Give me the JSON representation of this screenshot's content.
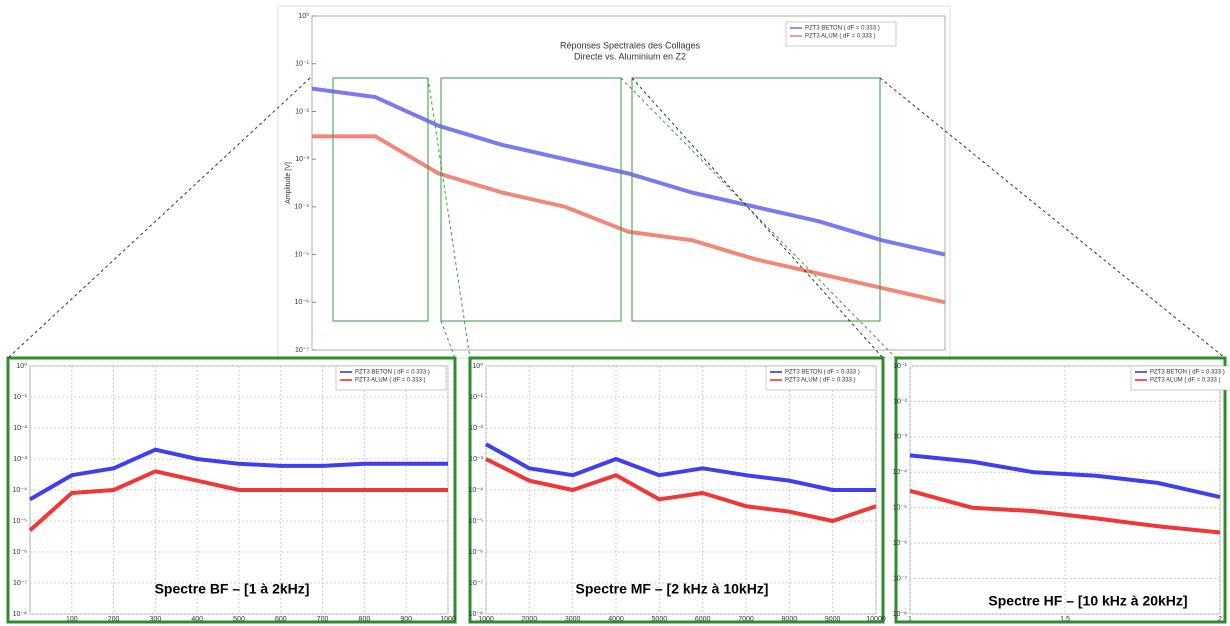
{
  "chart_data": [
    {
      "type": "line",
      "title": "Réponses Spectrales  des Collages",
      "subtitle": "Directe vs. Aluminium en Z2",
      "y_label": "Amplitude [V]",
      "log_y": true,
      "grid": false,
      "x": [
        0,
        2000,
        4000,
        6000,
        8000,
        10000,
        12000,
        14000,
        16000,
        18000,
        20000
      ],
      "xlim": [
        0,
        20000
      ],
      "ylim": [
        1e-07,
        1
      ],
      "yticks": [
        {
          "value": 1,
          "label": "10⁰"
        },
        {
          "value": 0.1,
          "label": "10⁻¹"
        },
        {
          "value": 0.01,
          "label": "10⁻²"
        },
        {
          "value": 0.001,
          "label": "10⁻³"
        },
        {
          "value": 0.0001,
          "label": "10⁻⁴"
        },
        {
          "value": 1e-05,
          "label": "10⁻⁵"
        },
        {
          "value": 1e-06,
          "label": "10⁻⁶"
        },
        {
          "value": 1e-07,
          "label": "10⁻⁷"
        }
      ],
      "series": [
        {
          "name": "PZT3 BETON ( dF = 0.333 )",
          "color": "#6a6af0",
          "values": [
            0.03,
            0.02,
            0.005,
            0.002,
            0.001,
            0.0005,
            0.0002,
            0.0001,
            5e-05,
            2e-05,
            1e-05
          ]
        },
        {
          "name": "PZT3 ALUM ( dF = 0.333 )",
          "color": "#f07a6a",
          "values": [
            0.003,
            0.003,
            0.0005,
            0.0002,
            0.0001,
            3e-05,
            2e-05,
            8e-06,
            4e-06,
            2e-06,
            1e-06
          ]
        }
      ]
    },
    {
      "type": "line",
      "caption": "Spectre BF –  [1 à 2kHz]",
      "log_y": true,
      "grid": true,
      "x": [
        0,
        100,
        200,
        300,
        400,
        500,
        600,
        700,
        800,
        900,
        1000
      ],
      "xlim": [
        0,
        1000
      ],
      "xticks": [
        100,
        200,
        300,
        400,
        500,
        600,
        700,
        800,
        900,
        1000
      ],
      "ylim": [
        1e-08,
        1
      ],
      "yticks": [
        {
          "value": 1,
          "label": "10⁰"
        },
        {
          "value": 0.1,
          "label": "10⁻¹"
        },
        {
          "value": 0.01,
          "label": "10⁻²"
        },
        {
          "value": 0.001,
          "label": "10⁻³"
        },
        {
          "value": 0.0001,
          "label": "10⁻⁴"
        },
        {
          "value": 1e-05,
          "label": "10⁻⁵"
        },
        {
          "value": 1e-06,
          "label": "10⁻⁶"
        },
        {
          "value": 1e-07,
          "label": "10⁻⁷"
        },
        {
          "value": 1e-08,
          "label": "10⁻⁸"
        }
      ],
      "series": [
        {
          "name": "PZT3 BETON ( dF = 0.333 )",
          "color": "#2a2af0",
          "values": [
            5e-05,
            0.0003,
            0.0005,
            0.002,
            0.001,
            0.0007,
            0.0006,
            0.0006,
            0.0007,
            0.0007,
            0.0007
          ]
        },
        {
          "name": "PZT3 ALUM ( dF = 0.333 )",
          "color": "#f02020",
          "values": [
            5e-06,
            8e-05,
            0.0001,
            0.0004,
            0.0002,
            0.0001,
            0.0001,
            0.0001,
            0.0001,
            0.0001,
            0.0001
          ]
        }
      ]
    },
    {
      "type": "line",
      "caption": "Spectre MF –  [2 kHz à 10kHz]",
      "log_y": true,
      "grid": true,
      "x": [
        1000,
        2000,
        3000,
        4000,
        5000,
        6000,
        7000,
        8000,
        9000,
        10000
      ],
      "xlim": [
        1000,
        10000
      ],
      "xticks": [
        1000,
        2000,
        3000,
        4000,
        5000,
        6000,
        7000,
        8000,
        9000,
        10000
      ],
      "ylim": [
        1e-08,
        1
      ],
      "yticks": [
        {
          "value": 1,
          "label": "10⁰"
        },
        {
          "value": 0.1,
          "label": "10⁻¹"
        },
        {
          "value": 0.01,
          "label": "10⁻²"
        },
        {
          "value": 0.001,
          "label": "10⁻³"
        },
        {
          "value": 0.0001,
          "label": "10⁻⁴"
        },
        {
          "value": 1e-05,
          "label": "10⁻⁵"
        },
        {
          "value": 1e-06,
          "label": "10⁻⁶"
        },
        {
          "value": 1e-07,
          "label": "10⁻⁷"
        },
        {
          "value": 1e-08,
          "label": "10⁻⁸"
        }
      ],
      "series": [
        {
          "name": "PZT3 BETON ( dF = 0.333 )",
          "color": "#2a2af0",
          "values": [
            0.003,
            0.0005,
            0.0003,
            0.001,
            0.0003,
            0.0005,
            0.0003,
            0.0002,
            0.0001,
            0.0001
          ]
        },
        {
          "name": "PZT3 ALUM ( dF = 0.333 )",
          "color": "#f02020",
          "values": [
            0.001,
            0.0002,
            0.0001,
            0.0003,
            5e-05,
            8e-05,
            3e-05,
            2e-05,
            1e-05,
            3e-05
          ]
        }
      ]
    },
    {
      "type": "line",
      "caption": "Spectre HF –  [10 kHz à 20kHz]",
      "log_y": true,
      "grid": true,
      "x": [
        10000,
        12000,
        14000,
        16000,
        18000,
        20000
      ],
      "xlim": [
        10000,
        20000
      ],
      "xticks": [
        {
          "value": 10000,
          "label": "1"
        },
        {
          "value": 15000,
          "label": "1.5"
        },
        {
          "value": 20000,
          "label": "2"
        }
      ],
      "ylim": [
        1e-08,
        0.1
      ],
      "yticks": [
        {
          "value": 0.1,
          "label": "10⁻¹"
        },
        {
          "value": 0.01,
          "label": "10⁻²"
        },
        {
          "value": 0.001,
          "label": "10⁻³"
        },
        {
          "value": 0.0001,
          "label": "10⁻⁴"
        },
        {
          "value": 1e-05,
          "label": "10⁻⁵"
        },
        {
          "value": 1e-06,
          "label": "10⁻⁶"
        },
        {
          "value": 1e-07,
          "label": "10⁻⁷"
        },
        {
          "value": 1e-08,
          "label": "10⁻⁸"
        }
      ],
      "series": [
        {
          "name": "PZT3 BETON ( dF = 0.333 )",
          "color": "#2a2af0",
          "values": [
            0.0003,
            0.0002,
            0.0001,
            8e-05,
            5e-05,
            2e-05
          ]
        },
        {
          "name": "PZT3 ALUM ( dF = 0.333 )",
          "color": "#f02020",
          "values": [
            3e-05,
            1e-05,
            8e-06,
            5e-06,
            3e-06,
            2e-06
          ]
        }
      ]
    }
  ]
}
